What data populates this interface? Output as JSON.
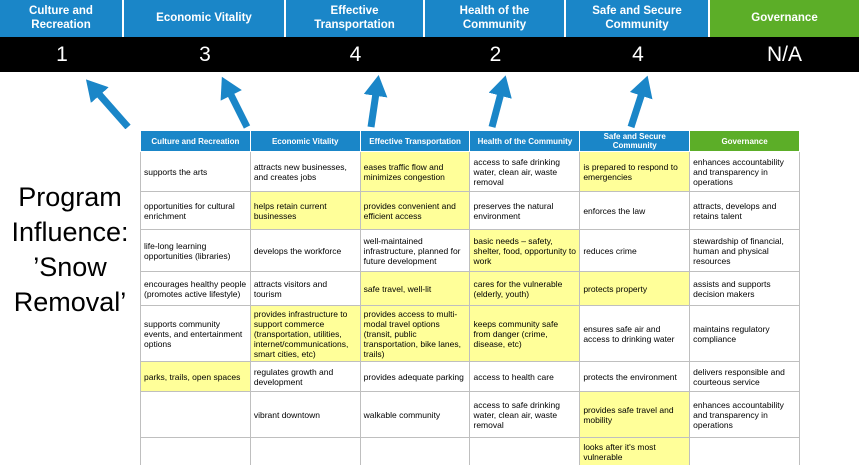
{
  "colors": {
    "category_blue": "#1a86c8",
    "governance_green": "#5cae28",
    "score_bar_bg": "#000000",
    "arrow_blue": "#1a86c8",
    "influence_highlight": "#ffff99"
  },
  "program_label": "Program Influence: ’Snow Removal’",
  "summary": {
    "columns": [
      {
        "label": "Culture and Recreation",
        "score": "1"
      },
      {
        "label": "Economic Vitality",
        "score": "3"
      },
      {
        "label": "Effective Transportation",
        "score": "4"
      },
      {
        "label": "Health of the Community",
        "score": "2"
      },
      {
        "label": "Safe and Secure Community",
        "score": "4"
      },
      {
        "label": "Governance",
        "score": "N/A"
      }
    ]
  },
  "matrix": {
    "headers": [
      "Culture and Recreation",
      "Economic Vitality",
      "Effective Transportation",
      "Health of the Community",
      "Safe and Secure Community",
      "Governance"
    ],
    "rows": [
      [
        {
          "text": "supports the arts",
          "highlighted": false
        },
        {
          "text": "attracts new businesses, and creates jobs",
          "highlighted": false
        },
        {
          "text": "eases traffic flow and minimizes congestion",
          "highlighted": true
        },
        {
          "text": "access to safe drinking water, clean air, waste removal",
          "highlighted": false
        },
        {
          "text": "is prepared to respond to emergencies",
          "highlighted": true
        },
        {
          "text": "enhances accountability and transparency in operations",
          "highlighted": false
        }
      ],
      [
        {
          "text": "opportunities for cultural enrichment",
          "highlighted": false
        },
        {
          "text": "helps retain current businesses",
          "highlighted": true
        },
        {
          "text": "provides convenient and efficient access",
          "highlighted": true
        },
        {
          "text": "preserves the natural environment",
          "highlighted": false
        },
        {
          "text": "enforces the law",
          "highlighted": false
        },
        {
          "text": "attracts, develops and retains talent",
          "highlighted": false
        }
      ],
      [
        {
          "text": "life-long learning opportunities (libraries)",
          "highlighted": false
        },
        {
          "text": "develops the workforce",
          "highlighted": false
        },
        {
          "text": "well-maintained infrastructure, planned for future development",
          "highlighted": false
        },
        {
          "text": "basic needs – safety, shelter, food, opportunity to work",
          "highlighted": true
        },
        {
          "text": "reduces crime",
          "highlighted": false
        },
        {
          "text": "stewardship of financial, human and physical resources",
          "highlighted": false
        }
      ],
      [
        {
          "text": "encourages healthy people (promotes active lifestyle)",
          "highlighted": false
        },
        {
          "text": "attracts visitors and tourism",
          "highlighted": false
        },
        {
          "text": "safe travel, well-lit",
          "highlighted": true
        },
        {
          "text": "cares for the vulnerable (elderly, youth)",
          "highlighted": true
        },
        {
          "text": "protects property",
          "highlighted": true
        },
        {
          "text": "assists and supports decision makers",
          "highlighted": false
        }
      ],
      [
        {
          "text": "supports community events, and entertainment options",
          "highlighted": false
        },
        {
          "text": "provides infrastructure to support commerce (transportation, utilities, internet/communications, smart cities, etc)",
          "highlighted": true
        },
        {
          "text": "provides access to multi-modal travel options (transit, public transportation, bike lanes, trails)",
          "highlighted": true
        },
        {
          "text": "keeps community safe from danger (crime, disease, etc)",
          "highlighted": true
        },
        {
          "text": "ensures safe air and access to drinking water",
          "highlighted": false
        },
        {
          "text": "maintains regulatory compliance",
          "highlighted": false
        }
      ],
      [
        {
          "text": "parks, trails, open spaces",
          "highlighted": true
        },
        {
          "text": "regulates growth and development",
          "highlighted": false
        },
        {
          "text": "provides adequate parking",
          "highlighted": false
        },
        {
          "text": "access to health care",
          "highlighted": false
        },
        {
          "text": "protects the environment",
          "highlighted": false
        },
        {
          "text": "delivers responsible and courteous service",
          "highlighted": false
        }
      ],
      [
        {
          "text": "",
          "highlighted": false
        },
        {
          "text": "vibrant downtown",
          "highlighted": false
        },
        {
          "text": "walkable community",
          "highlighted": false
        },
        {
          "text": "access to safe drinking water, clean air, waste removal",
          "highlighted": false
        },
        {
          "text": "provides safe travel and mobility",
          "highlighted": true
        },
        {
          "text": "enhances accountability and transparency in operations",
          "highlighted": false
        }
      ],
      [
        {
          "text": "",
          "highlighted": false
        },
        {
          "text": "",
          "highlighted": false
        },
        {
          "text": "",
          "highlighted": false
        },
        {
          "text": "",
          "highlighted": false
        },
        {
          "text": "looks after it's most vulnerable",
          "highlighted": true
        },
        {
          "text": "",
          "highlighted": false
        }
      ]
    ]
  }
}
